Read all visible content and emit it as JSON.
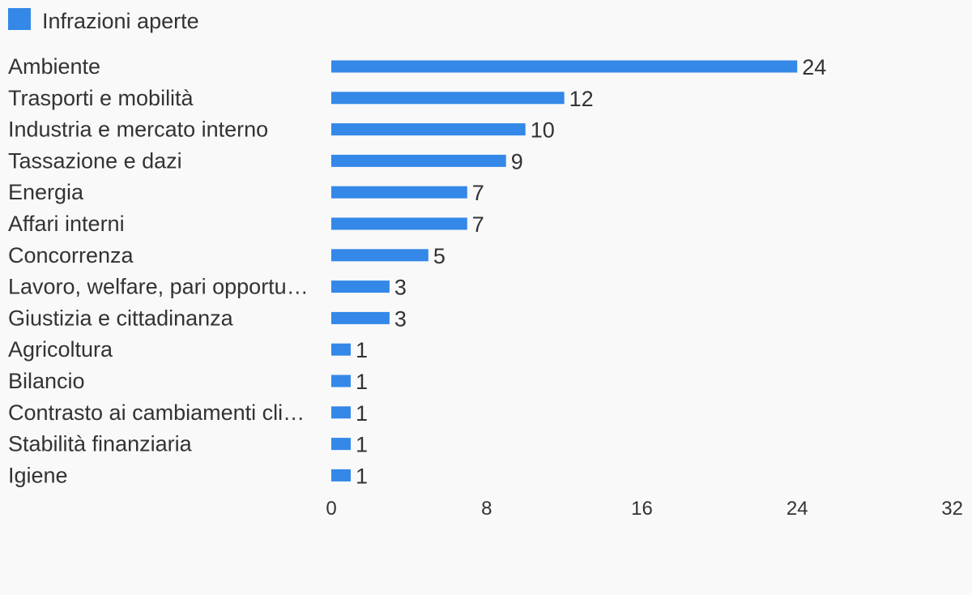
{
  "chart_data": {
    "type": "bar",
    "orientation": "horizontal",
    "categories": [
      "Ambiente",
      "Trasporti e mobilità",
      "Industria e mercato interno",
      "Tassazione e dazi",
      "Energia",
      "Affari interni",
      "Concorrenza",
      "Lavoro, welfare, pari opportu…",
      "Giustizia e cittadinanza",
      "Agricoltura",
      "Bilancio",
      "Contrasto ai cambiamenti cli…",
      "Stabilità finanziaria",
      "Igiene"
    ],
    "series": [
      {
        "name": "Infrazioni aperte",
        "values": [
          24,
          12,
          10,
          9,
          7,
          7,
          5,
          3,
          3,
          1,
          1,
          1,
          1,
          1
        ],
        "color": "#3388e8"
      }
    ],
    "xlim": [
      0,
      32
    ],
    "xticks": [
      "0",
      "8",
      "16",
      "24",
      "32"
    ],
    "grid": false,
    "legend_position": "top-left",
    "data_labels": true
  }
}
